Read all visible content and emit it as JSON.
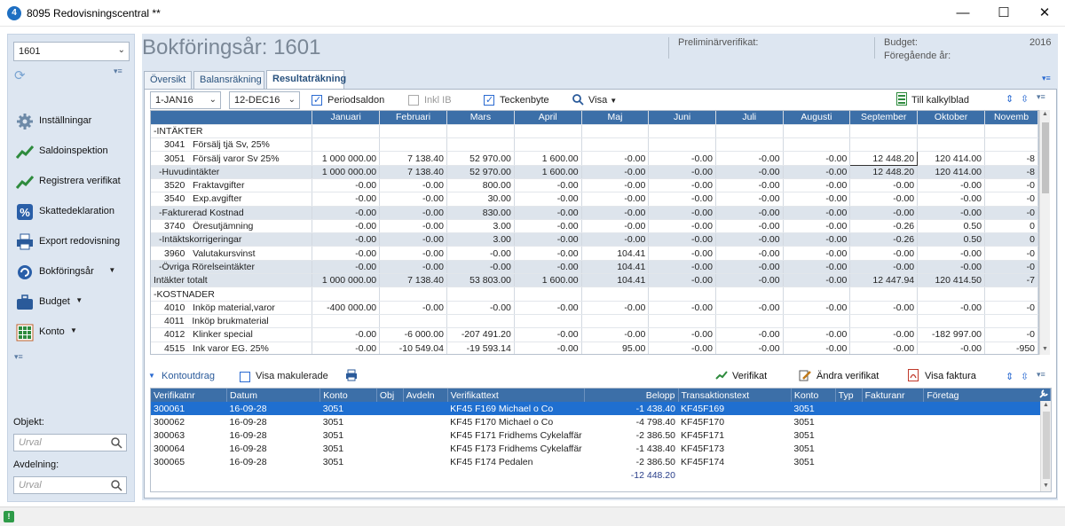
{
  "window": {
    "title": "8095 Redovisningscentral **",
    "icon": "app-icon",
    "min_glyph": "—",
    "max_glyph": "☐",
    "close_glyph": "✕"
  },
  "sidebar": {
    "year_select": "1601",
    "refresh_icon": "refresh-icon",
    "items": [
      {
        "label": "Inställningar",
        "icon": "gear-icon"
      },
      {
        "label": "Saldoinspektion",
        "icon": "chart-icon"
      },
      {
        "label": "Registrera verifikat",
        "icon": "chart-icon"
      },
      {
        "label": "Skattedeklaration",
        "icon": "percent-icon"
      },
      {
        "label": "Export redovisning",
        "icon": "printer-icon"
      },
      {
        "label": "Bokföringsår",
        "icon": "cycle-icon",
        "dropdown": true
      },
      {
        "label": "Budget",
        "icon": "briefcase-icon",
        "dropdown": true
      },
      {
        "label": "Konto",
        "icon": "grid-icon",
        "dropdown": true
      }
    ],
    "objekt_label": "Objekt:",
    "objekt_placeholder": "Urval",
    "avdelning_label": "Avdelning:",
    "avdelning_placeholder": "Urval"
  },
  "header": {
    "title": "Bokföringsår: 1601",
    "preliminar_label": "Preliminärverifikat:",
    "budget_label": "Budget:",
    "budget_value": "2016",
    "foregaende_label": "Föregående år:"
  },
  "tabs": [
    "Översikt",
    "Balansräkning",
    "Resultaträkning"
  ],
  "active_tab": 2,
  "toolbar": {
    "from_date": "1-JAN16",
    "to_date": "12-DEC16",
    "periodsaldon": {
      "label": "Periodsaldon",
      "checked": true
    },
    "inkl_ib": {
      "label": "Inkl IB",
      "checked": false
    },
    "teckenbyte": {
      "label": "Teckenbyte",
      "checked": true
    },
    "visa": "Visa",
    "till_kalkylblad": "Till kalkylblad"
  },
  "grid": {
    "columns": [
      "",
      "Januari",
      "Februari",
      "Mars",
      "April",
      "Maj",
      "Juni",
      "Juli",
      "Augusti",
      "September",
      "Oktober",
      "Novemb"
    ],
    "rows": [
      {
        "label": "-INTÄKTER",
        "indent": 0,
        "type": "header",
        "values": []
      },
      {
        "label": "3041   Försälj tjä Sv, 25%",
        "indent": 2,
        "type": "normal",
        "values": []
      },
      {
        "label": "3051   Försälj varor Sv 25%",
        "indent": 2,
        "type": "normal",
        "values": [
          "1 000 000.00",
          "7 138.40",
          "52 970.00",
          "1 600.00",
          "-0.00",
          "-0.00",
          "-0.00",
          "-0.00",
          "12 448.20",
          "120 414.00",
          "-8"
        ]
      },
      {
        "label": "-Huvudintäkter",
        "indent": 1,
        "type": "sum",
        "values": [
          "1 000 000.00",
          "7 138.40",
          "52 970.00",
          "1 600.00",
          "-0.00",
          "-0.00",
          "-0.00",
          "-0.00",
          "12 448.20",
          "120 414.00",
          "-8"
        ]
      },
      {
        "label": "3520   Fraktavgifter",
        "indent": 2,
        "type": "normal",
        "values": [
          "-0.00",
          "-0.00",
          "800.00",
          "-0.00",
          "-0.00",
          "-0.00",
          "-0.00",
          "-0.00",
          "-0.00",
          "-0.00",
          "-0"
        ]
      },
      {
        "label": "3540   Exp.avgifter",
        "indent": 2,
        "type": "normal",
        "values": [
          "-0.00",
          "-0.00",
          "30.00",
          "-0.00",
          "-0.00",
          "-0.00",
          "-0.00",
          "-0.00",
          "-0.00",
          "-0.00",
          "-0"
        ]
      },
      {
        "label": "-Fakturerad Kostnad",
        "indent": 1,
        "type": "sum",
        "values": [
          "-0.00",
          "-0.00",
          "830.00",
          "-0.00",
          "-0.00",
          "-0.00",
          "-0.00",
          "-0.00",
          "-0.00",
          "-0.00",
          "-0"
        ]
      },
      {
        "label": "3740   Öresutjämning",
        "indent": 2,
        "type": "normal",
        "values": [
          "-0.00",
          "-0.00",
          "3.00",
          "-0.00",
          "-0.00",
          "-0.00",
          "-0.00",
          "-0.00",
          "-0.26",
          "0.50",
          "0"
        ]
      },
      {
        "label": "-Intäktskorrigeringar",
        "indent": 1,
        "type": "sum",
        "values": [
          "-0.00",
          "-0.00",
          "3.00",
          "-0.00",
          "-0.00",
          "-0.00",
          "-0.00",
          "-0.00",
          "-0.26",
          "0.50",
          "0"
        ]
      },
      {
        "label": "3960   Valutakursvinst",
        "indent": 2,
        "type": "normal",
        "values": [
          "-0.00",
          "-0.00",
          "-0.00",
          "-0.00",
          "104.41",
          "-0.00",
          "-0.00",
          "-0.00",
          "-0.00",
          "-0.00",
          "-0"
        ]
      },
      {
        "label": "-Övriga Rörelseintäkter",
        "indent": 1,
        "type": "sum",
        "values": [
          "-0.00",
          "-0.00",
          "-0.00",
          "-0.00",
          "104.41",
          "-0.00",
          "-0.00",
          "-0.00",
          "-0.00",
          "-0.00",
          "-0"
        ]
      },
      {
        "label": "Intäkter totalt",
        "indent": 0,
        "type": "sum",
        "values": [
          "1 000 000.00",
          "7 138.40",
          "53 803.00",
          "1 600.00",
          "104.41",
          "-0.00",
          "-0.00",
          "-0.00",
          "12 447.94",
          "120 414.50",
          "-7"
        ]
      },
      {
        "label": "-KOSTNADER",
        "indent": 0,
        "type": "header",
        "values": []
      },
      {
        "label": "4010   Inköp material,varor",
        "indent": 2,
        "type": "normal",
        "values": [
          "-400 000.00",
          "-0.00",
          "-0.00",
          "-0.00",
          "-0.00",
          "-0.00",
          "-0.00",
          "-0.00",
          "-0.00",
          "-0.00",
          "-0"
        ]
      },
      {
        "label": "4011   Inköp brukmaterial",
        "indent": 2,
        "type": "normal",
        "values": []
      },
      {
        "label": "4012   Klinker special",
        "indent": 2,
        "type": "normal",
        "values": [
          "-0.00",
          "-6 000.00",
          "-207 491.20",
          "-0.00",
          "-0.00",
          "-0.00",
          "-0.00",
          "-0.00",
          "-0.00",
          "-182 997.00",
          "-0"
        ]
      },
      {
        "label": "4515   Ink varor EG. 25%",
        "indent": 2,
        "type": "normal",
        "values": [
          "-0.00",
          "-10 549.04",
          "-19 593.14",
          "-0.00",
          "95.00",
          "-0.00",
          "-0.00",
          "-0.00",
          "-0.00",
          "-0.00",
          "-950"
        ]
      }
    ]
  },
  "lower": {
    "title": "Kontoutdrag",
    "visa_makulerade": "Visa makulerade",
    "verifikat_btn": "Verifikat",
    "andra_btn": "Ändra verifikat",
    "visa_faktura_btn": "Visa faktura",
    "columns": [
      "Verifikatnr",
      "Datum",
      "Konto",
      "Obj",
      "Avdeln",
      "Verifikattext",
      "Belopp",
      "Transaktionstext",
      "Konto",
      "Typ",
      "Fakturanr",
      "Företag"
    ],
    "rows": [
      [
        "300061",
        "16-09-28",
        "3051",
        "",
        "",
        "KF45 F169 Michael o Co",
        "-1 438.40",
        "KF45F169",
        "3051",
        "",
        "",
        ""
      ],
      [
        "300062",
        "16-09-28",
        "3051",
        "",
        "",
        "KF45 F170 Michael o Co",
        "-4 798.40",
        "KF45F170",
        "3051",
        "",
        "",
        ""
      ],
      [
        "300063",
        "16-09-28",
        "3051",
        "",
        "",
        "KF45 F171 Fridhems Cykelaffär",
        "-2 386.50",
        "KF45F171",
        "3051",
        "",
        "",
        ""
      ],
      [
        "300064",
        "16-09-28",
        "3051",
        "",
        "",
        "KF45 F173 Fridhems Cykelaffär",
        "-1 438.40",
        "KF45F173",
        "3051",
        "",
        "",
        ""
      ],
      [
        "300065",
        "16-09-28",
        "3051",
        "",
        "",
        "KF45 F174 Pedalen",
        "-2 386.50",
        "KF45F174",
        "3051",
        "",
        "",
        ""
      ]
    ],
    "selected_row": 0,
    "total": "-12 448.20"
  },
  "colors": {
    "header_blue": "#3c6fa8",
    "selection": "#1f6fd0",
    "panel_bg": "#dde6f1"
  }
}
